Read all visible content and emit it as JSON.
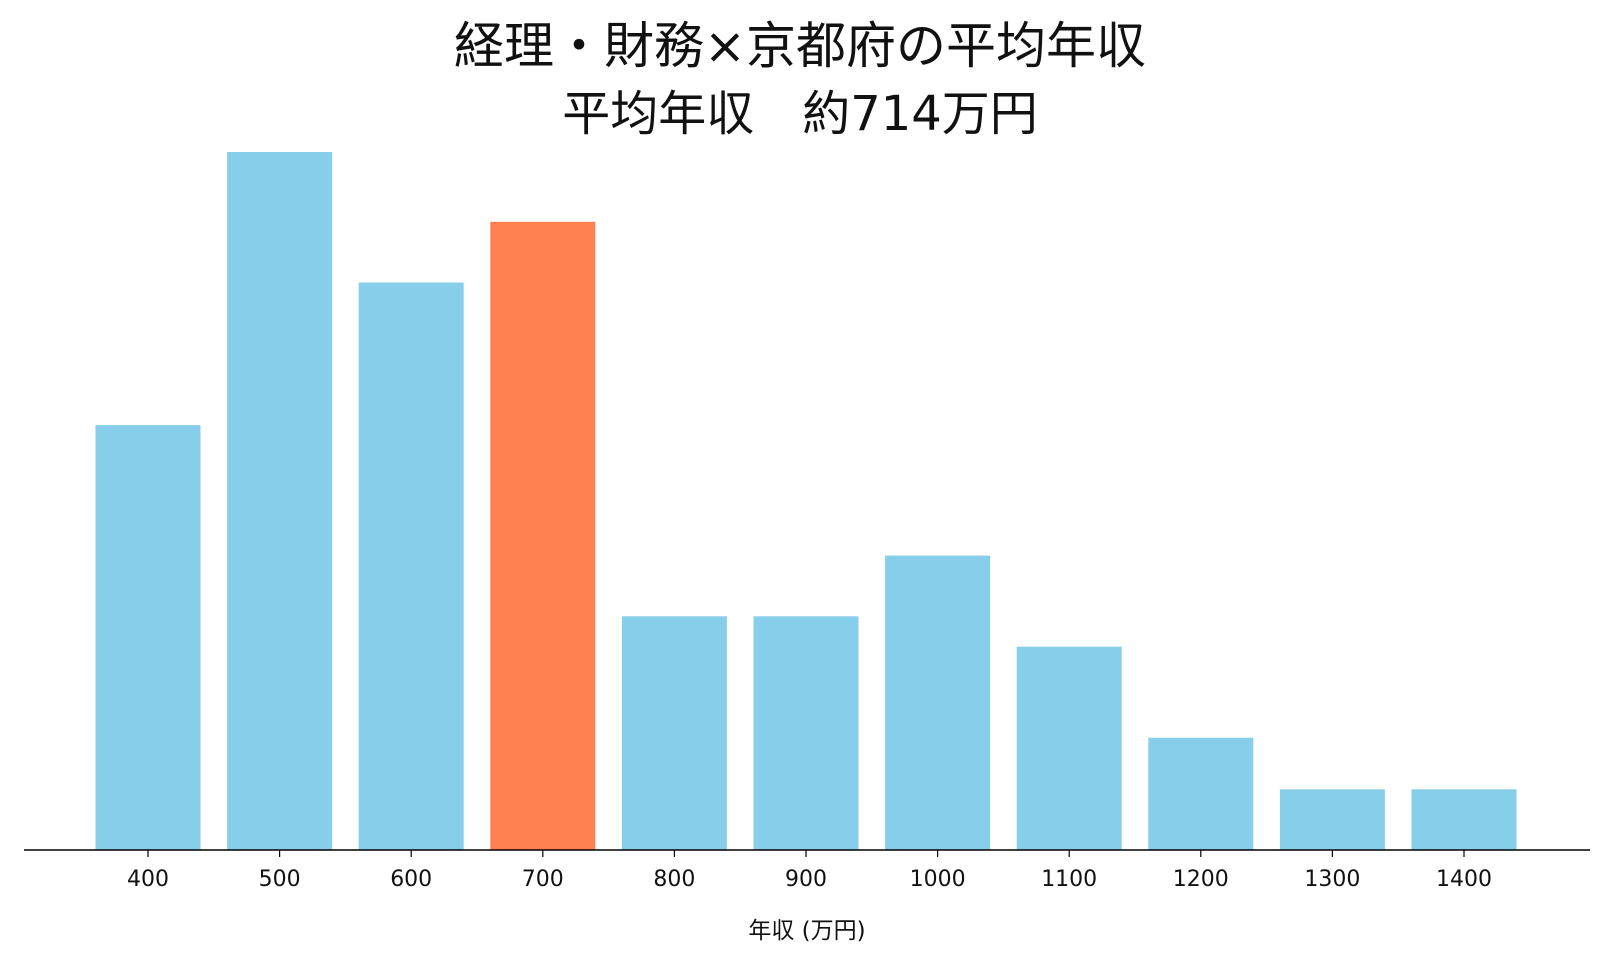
{
  "chart_data": {
    "type": "bar",
    "title": "経理・財務×京都府の平均年収",
    "subtitle": "平均年収　約714万円",
    "xlabel": "年収 (万円)",
    "ylabel": "",
    "categories": [
      "400",
      "500",
      "600",
      "700",
      "800",
      "900",
      "1000",
      "1100",
      "1200",
      "1300",
      "1400"
    ],
    "values": [
      14,
      23,
      18.7,
      20.7,
      7.7,
      7.7,
      9.7,
      6.7,
      3.7,
      2,
      2
    ],
    "highlight_category": "700",
    "ylim": [
      0,
      23
    ],
    "grid": false,
    "legend": "none",
    "colors": {
      "bar": "#87CEEB",
      "highlight": "#FF7F50",
      "axis": "#000000",
      "text": "#111111"
    }
  }
}
